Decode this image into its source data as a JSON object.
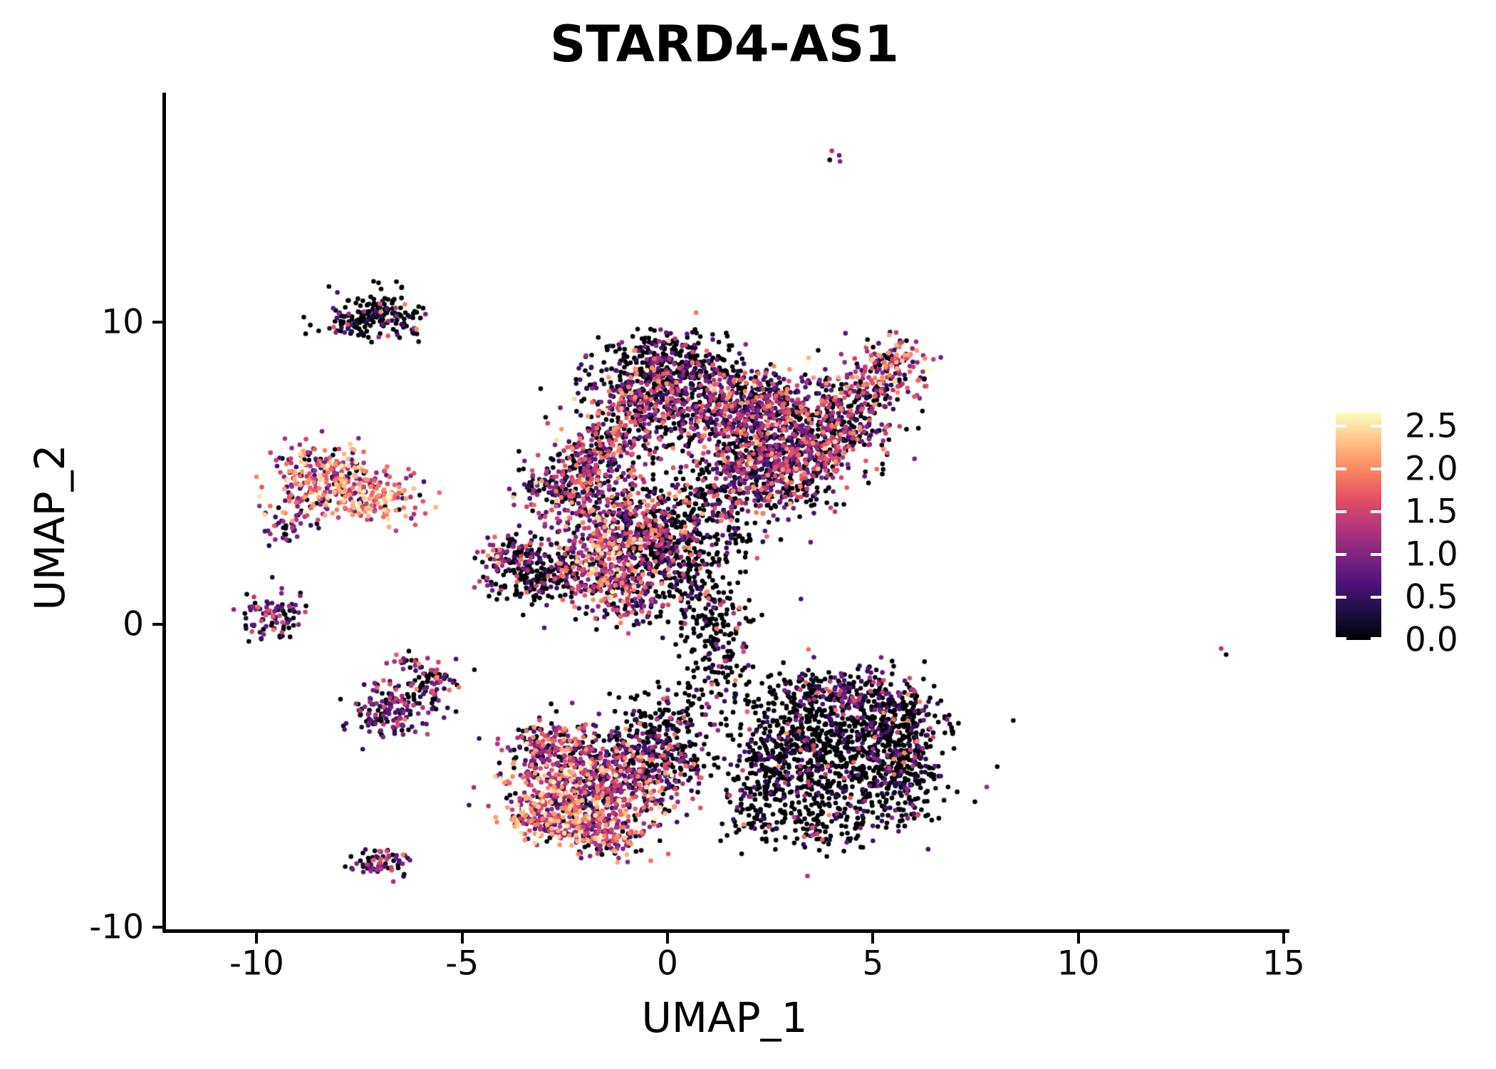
{
  "title": "STARD4-AS1",
  "chart_data": {
    "type": "scatter",
    "title": "STARD4-AS1",
    "xlabel": "UMAP_1",
    "ylabel": "UMAP_2",
    "x_ticks": [
      -10,
      -5,
      0,
      5,
      10,
      15
    ],
    "x_tick_labels": [
      "-10",
      "-5",
      "0",
      "5",
      "10",
      "15"
    ],
    "y_ticks": [
      -10,
      0,
      10
    ],
    "y_tick_labels": [
      "-10",
      "0",
      "10"
    ],
    "xlim": [
      -12.3,
      15.1
    ],
    "ylim": [
      -10.2,
      17.6
    ],
    "grid": false,
    "legend": {
      "position": "right",
      "ticks": [
        0.0,
        0.5,
        1.0,
        1.5,
        2.0,
        2.5
      ],
      "tick_labels": [
        "0.0",
        "0.5",
        "1.0",
        "1.5",
        "2.0",
        "2.5"
      ],
      "vmin": 0.0,
      "vmax": 2.66
    },
    "colormap": {
      "name": "magma",
      "stops": [
        [
          0.0,
          "#000004"
        ],
        [
          0.125,
          "#1c1044"
        ],
        [
          0.25,
          "#4f127b"
        ],
        [
          0.375,
          "#812581"
        ],
        [
          0.5,
          "#b5367a"
        ],
        [
          0.625,
          "#e55064"
        ],
        [
          0.75,
          "#fb8761"
        ],
        [
          0.875,
          "#fec287"
        ],
        [
          1.0,
          "#fcfdbf"
        ]
      ]
    },
    "point_radius_px": 3.3,
    "random_seed": 20240607,
    "expression_profiles": {
      "black": [
        [
          0.78,
          0,
          0
        ],
        [
          0.15,
          0.2,
          0.8
        ],
        [
          0.05,
          0.8,
          1.5
        ],
        [
          0.02,
          1.5,
          2.1
        ]
      ],
      "purple": [
        [
          0.35,
          0,
          0
        ],
        [
          0.45,
          0.3,
          1.0
        ],
        [
          0.17,
          1.0,
          1.6
        ],
        [
          0.03,
          1.6,
          2.0
        ]
      ],
      "mixed": [
        [
          0.4,
          0,
          0
        ],
        [
          0.28,
          0.3,
          1.0
        ],
        [
          0.21,
          1.0,
          1.6
        ],
        [
          0.1,
          1.6,
          2.1
        ],
        [
          0.01,
          2.1,
          2.6
        ]
      ],
      "colorful": [
        [
          0.17,
          0,
          0
        ],
        [
          0.28,
          0.4,
          1.1
        ],
        [
          0.31,
          1.0,
          1.7
        ],
        [
          0.18,
          1.7,
          2.2
        ],
        [
          0.06,
          2.2,
          2.65
        ]
      ],
      "hot": [
        [
          0.1,
          0,
          0
        ],
        [
          0.2,
          0.5,
          1.2
        ],
        [
          0.3,
          1.2,
          1.8
        ],
        [
          0.28,
          1.8,
          2.3
        ],
        [
          0.12,
          2.2,
          2.65
        ]
      ]
    },
    "clusters": [
      {
        "name": "central-main",
        "blobs": [
          [
            0.0,
            8.75,
            0.8,
            0.45,
            210,
            "black"
          ],
          [
            0.1,
            7.9,
            1.0,
            0.7,
            380,
            "mixed"
          ],
          [
            -0.9,
            7.2,
            0.6,
            0.6,
            150,
            "mixed"
          ],
          [
            1.5,
            6.9,
            1.0,
            0.8,
            320,
            "mixed"
          ],
          [
            2.4,
            7.4,
            0.6,
            0.5,
            140,
            "mixed"
          ],
          [
            2.8,
            6.2,
            0.9,
            0.7,
            260,
            "mixed"
          ],
          [
            3.9,
            6.9,
            0.55,
            0.5,
            140,
            "mixed"
          ],
          [
            4.7,
            7.7,
            0.5,
            0.5,
            130,
            "mixed"
          ],
          [
            5.5,
            8.6,
            0.45,
            0.45,
            130,
            "colorful"
          ],
          [
            4.6,
            6.3,
            0.5,
            0.4,
            80,
            "mixed"
          ],
          [
            -2.6,
            4.6,
            0.55,
            0.45,
            160,
            "mixed"
          ],
          [
            -1.9,
            5.3,
            0.5,
            0.45,
            140,
            "mixed"
          ],
          [
            -1.2,
            6.0,
            0.5,
            0.5,
            130,
            "mixed"
          ],
          [
            -1.4,
            3.5,
            0.8,
            0.8,
            300,
            "colorful"
          ],
          [
            -0.4,
            2.7,
            0.7,
            0.7,
            240,
            "mixed"
          ],
          [
            0.7,
            3.5,
            0.9,
            0.8,
            200,
            "black"
          ],
          [
            1.8,
            4.5,
            0.9,
            0.75,
            260,
            "mixed"
          ],
          [
            2.2,
            5.6,
            0.7,
            0.6,
            150,
            "mixed"
          ],
          [
            2.9,
            4.8,
            0.65,
            0.55,
            150,
            "mixed"
          ],
          [
            3.9,
            5.6,
            0.5,
            0.45,
            100,
            "mixed"
          ],
          [
            -1.7,
            1.8,
            0.6,
            0.65,
            230,
            "colorful"
          ],
          [
            -1.0,
            0.9,
            0.5,
            0.55,
            130,
            "mixed"
          ],
          [
            0.3,
            1.7,
            0.7,
            0.7,
            130,
            "black"
          ],
          [
            1.0,
            0.6,
            0.5,
            0.7,
            90,
            "black"
          ],
          [
            1.2,
            -0.6,
            0.45,
            0.7,
            80,
            "black"
          ],
          [
            1.3,
            -1.8,
            0.4,
            0.5,
            50,
            "black"
          ],
          [
            0.4,
            -2.6,
            0.5,
            0.4,
            30,
            "black"
          ]
        ]
      },
      {
        "name": "bottom-left",
        "blobs": [
          [
            -2.6,
            -5.0,
            0.75,
            0.8,
            280,
            "colorful"
          ],
          [
            -1.5,
            -5.5,
            0.85,
            0.75,
            320,
            "colorful"
          ],
          [
            -0.6,
            -4.7,
            0.75,
            0.75,
            260,
            "mixed"
          ],
          [
            -2.9,
            -6.4,
            0.5,
            0.45,
            140,
            "hot"
          ],
          [
            -1.8,
            -6.8,
            0.6,
            0.45,
            150,
            "colorful"
          ],
          [
            -1.2,
            -7.3,
            0.35,
            0.3,
            45,
            "colorful"
          ],
          [
            -2.9,
            -4.0,
            0.6,
            0.45,
            130,
            "mixed"
          ],
          [
            -0.4,
            -3.6,
            0.55,
            0.6,
            120,
            "black"
          ],
          [
            0.5,
            -4.4,
            0.45,
            0.55,
            60,
            "black"
          ]
        ]
      },
      {
        "name": "bottom-right-black",
        "blobs": [
          [
            4.6,
            -4.5,
            1.0,
            1.2,
            620,
            "black"
          ],
          [
            3.3,
            -3.3,
            0.75,
            0.7,
            220,
            "black"
          ],
          [
            2.7,
            -4.8,
            0.65,
            0.75,
            180,
            "black"
          ],
          [
            5.5,
            -3.0,
            0.55,
            0.6,
            170,
            "black"
          ],
          [
            5.8,
            -4.8,
            0.45,
            0.8,
            170,
            "black"
          ],
          [
            3.4,
            -2.2,
            0.45,
            0.4,
            70,
            "black"
          ],
          [
            4.6,
            -2.4,
            0.6,
            0.4,
            90,
            "purple"
          ],
          [
            3.4,
            -6.6,
            0.8,
            0.4,
            110,
            "black"
          ],
          [
            2.1,
            -5.8,
            0.4,
            0.5,
            50,
            "black"
          ]
        ]
      },
      {
        "name": "left-high-expression",
        "blobs": [
          [
            -8.6,
            5.2,
            0.5,
            0.45,
            110,
            "hot"
          ],
          [
            -7.9,
            4.7,
            0.55,
            0.5,
            130,
            "hot"
          ],
          [
            -7.0,
            4.2,
            0.55,
            0.45,
            120,
            "hot"
          ],
          [
            -8.9,
            4.1,
            0.4,
            0.35,
            60,
            "colorful"
          ],
          [
            -9.3,
            3.2,
            0.25,
            0.3,
            30,
            "purple"
          ]
        ]
      },
      {
        "name": "upper-left-black",
        "blobs": [
          [
            -7.0,
            10.3,
            0.45,
            0.45,
            120,
            "black"
          ],
          [
            -7.8,
            9.95,
            0.45,
            0.18,
            45,
            "black"
          ],
          [
            -6.4,
            10.1,
            0.25,
            0.3,
            25,
            "black"
          ]
        ]
      },
      {
        "name": "left-small-zero",
        "blobs": [
          [
            -9.5,
            0.3,
            0.4,
            0.35,
            90,
            "purple"
          ]
        ]
      },
      {
        "name": "left-lower-diagonal",
        "blobs": [
          [
            -7.0,
            -3.0,
            0.45,
            0.4,
            110,
            "purple"
          ],
          [
            -6.3,
            -2.4,
            0.45,
            0.35,
            70,
            "purple"
          ],
          [
            -5.7,
            -1.8,
            0.3,
            0.28,
            45,
            "mixed"
          ],
          [
            -6.3,
            -1.35,
            0.22,
            0.18,
            20,
            "mixed"
          ]
        ]
      },
      {
        "name": "left-bottom-small",
        "blobs": [
          [
            -7.0,
            -7.9,
            0.38,
            0.24,
            65,
            "purple"
          ]
        ]
      },
      {
        "name": "mid-left-small",
        "blobs": [
          [
            -3.3,
            1.7,
            0.5,
            0.5,
            170,
            "black"
          ],
          [
            -3.9,
            2.3,
            0.4,
            0.35,
            70,
            "mixed"
          ],
          [
            -4.35,
            1.3,
            0.15,
            0.15,
            12,
            "purple"
          ],
          [
            -2.7,
            1.3,
            0.35,
            0.3,
            25,
            "black"
          ]
        ]
      }
    ],
    "extra_points": [
      [
        4.0,
        15.65,
        1.3
      ],
      [
        4.18,
        15.5,
        0.8
      ],
      [
        3.95,
        15.35,
        0.05
      ],
      [
        4.2,
        15.3,
        1.05
      ],
      [
        13.48,
        -0.8,
        1.35
      ],
      [
        13.6,
        -1.0,
        0.05
      ],
      [
        -6.1,
        9.6,
        0.05
      ],
      [
        -5.95,
        10.45,
        0.05
      ],
      [
        -9.55,
        2.8,
        1.1
      ],
      [
        -9.7,
        2.6,
        0.35
      ],
      [
        -5.15,
        -1.15,
        0.6
      ],
      [
        -4.7,
        -1.5,
        0.05
      ],
      [
        2.3,
        -1.95,
        0.05
      ],
      [
        1.9,
        -2.5,
        0.05
      ],
      [
        0.15,
        -2.95,
        0.05
      ],
      [
        2.6,
        -2.3,
        0.3
      ]
    ]
  }
}
